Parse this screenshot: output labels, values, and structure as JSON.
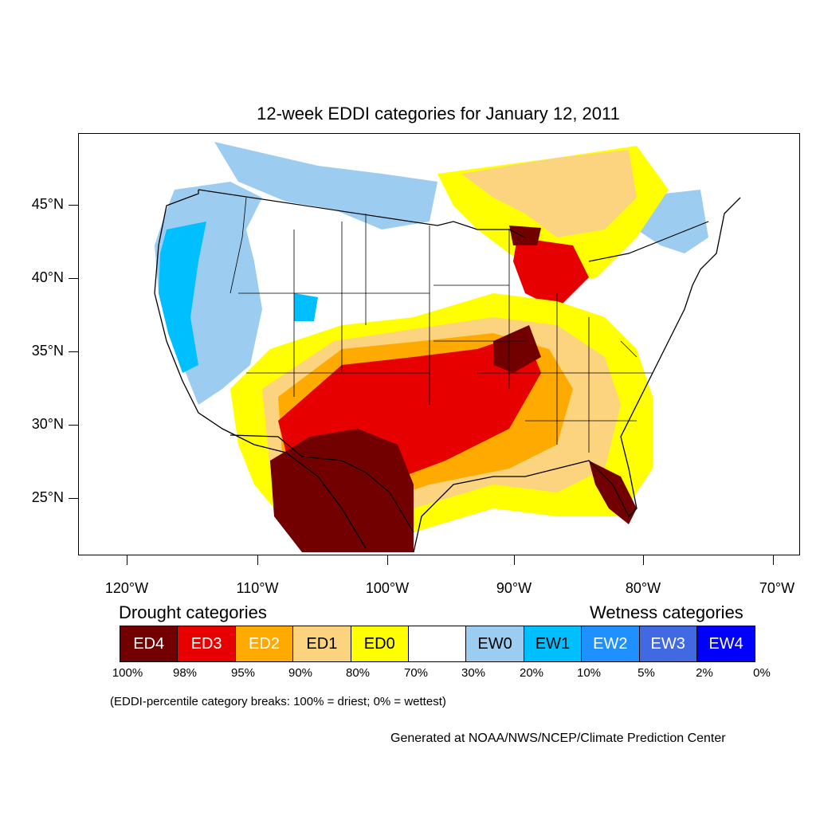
{
  "title": "12-week EDDI categories for January 12, 2011",
  "lat_labels": [
    "45°N",
    "40°N",
    "35°N",
    "30°N",
    "25°N"
  ],
  "lon_labels": [
    "120°W",
    "110°W",
    "100°W",
    "90°W",
    "80°W",
    "70°W"
  ],
  "legend": {
    "drought_heading": "Drought categories",
    "wetness_heading": "Wetness categories",
    "categories": [
      {
        "label": "ED4",
        "color": "#730000",
        "text_color": "#ffffff"
      },
      {
        "label": "ED3",
        "color": "#e60000",
        "text_color": "#ffffff"
      },
      {
        "label": "ED2",
        "color": "#ffaa00",
        "text_color": "#ffffff"
      },
      {
        "label": "ED1",
        "color": "#fcd37f",
        "text_color": "#000000"
      },
      {
        "label": "ED0",
        "color": "#ffff00",
        "text_color": "#000000"
      },
      {
        "label": "",
        "color": "#ffffff",
        "text_color": "#000000"
      },
      {
        "label": "EW0",
        "color": "#9ccdf0",
        "text_color": "#000000"
      },
      {
        "label": "EW1",
        "color": "#00bfff",
        "text_color": "#000000"
      },
      {
        "label": "EW2",
        "color": "#1e90ff",
        "text_color": "#ffffff"
      },
      {
        "label": "EW3",
        "color": "#4169e1",
        "text_color": "#ffffff"
      },
      {
        "label": "EW4",
        "color": "#0000ff",
        "text_color": "#ffffff"
      }
    ],
    "breaks": [
      "100%",
      "98%",
      "95%",
      "90%",
      "80%",
      "70%",
      "30%",
      "20%",
      "10%",
      "5%",
      "2%",
      "0%"
    ]
  },
  "note": "(EDDI-percentile category breaks: 100% = driest; 0% = wettest)",
  "credit": "Generated at NOAA/NWS/NCEP/Climate Prediction Center"
}
